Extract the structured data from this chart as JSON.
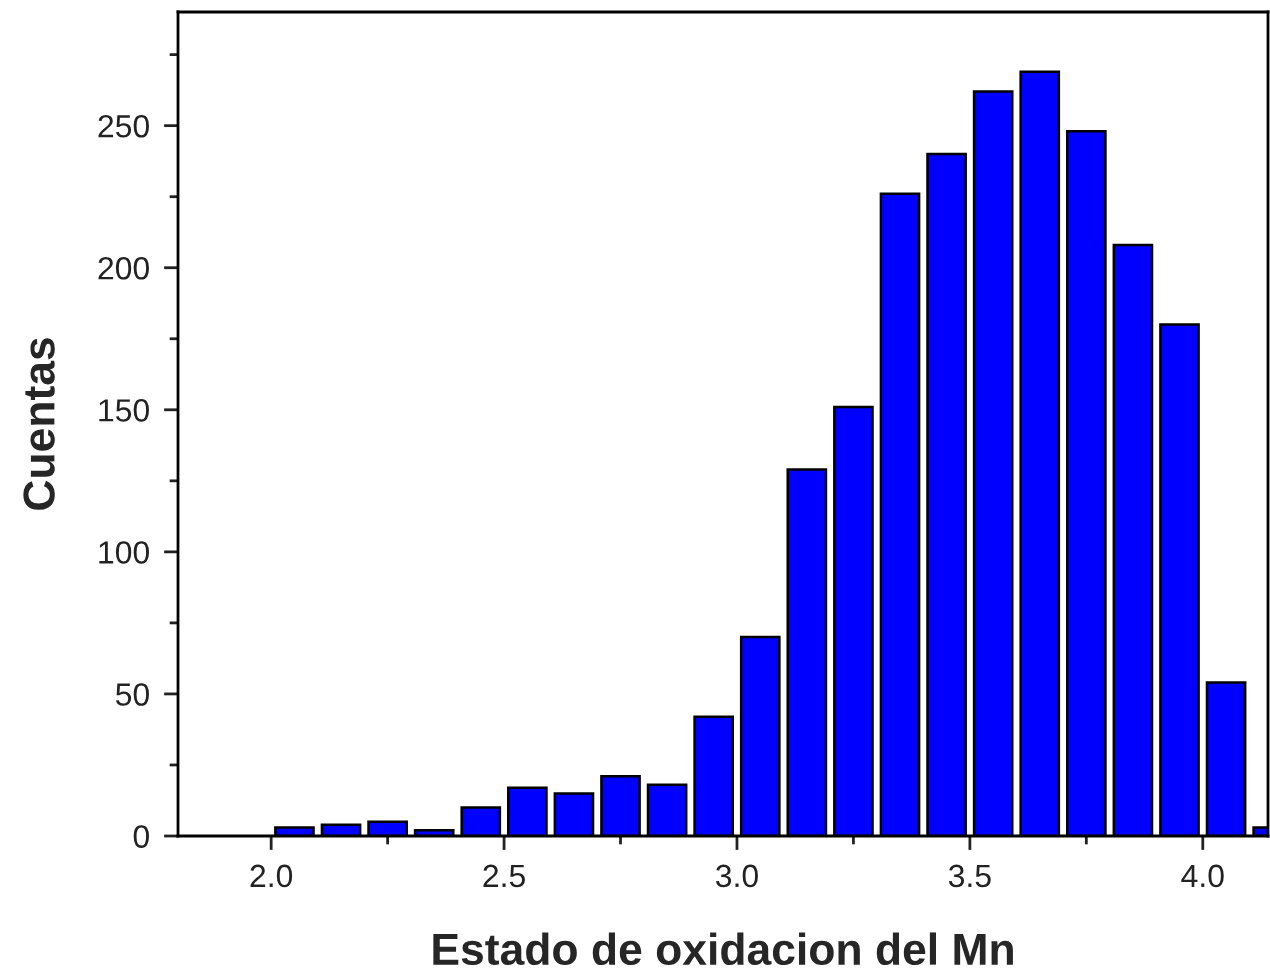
{
  "chart_data": {
    "type": "histogram",
    "xlabel": "Estado de oxidacion del Mn",
    "ylabel": "Cuentas",
    "color": "#0000ff",
    "bins": [
      2.0,
      2.1,
      2.2,
      2.3,
      2.4,
      2.5,
      2.6,
      2.7,
      2.8,
      2.9,
      3.0,
      3.1,
      3.2,
      3.3,
      3.4,
      3.5,
      3.6,
      3.7,
      3.8,
      3.9,
      4.0,
      4.1,
      4.2
    ],
    "values": [
      3,
      4,
      5,
      2,
      10,
      17,
      15,
      21,
      18,
      42,
      70,
      129,
      151,
      226,
      240,
      262,
      269,
      248,
      208,
      180,
      54,
      3
    ],
    "xlim": [
      1.8,
      4.14
    ],
    "ylim": [
      0,
      290
    ],
    "xticks": [
      {
        "value": 2.0,
        "label": "2.0"
      },
      {
        "value": 2.25,
        "label": null
      },
      {
        "value": 2.5,
        "label": "2.5"
      },
      {
        "value": 2.75,
        "label": null
      },
      {
        "value": 3.0,
        "label": "3.0"
      },
      {
        "value": 3.25,
        "label": null
      },
      {
        "value": 3.5,
        "label": "3.5"
      },
      {
        "value": 3.75,
        "label": null
      },
      {
        "value": 4.0,
        "label": "4.0"
      }
    ],
    "yticks": [
      0,
      {
        "value": 25,
        "label": null
      },
      50,
      {
        "value": 75,
        "label": null
      },
      100,
      {
        "value": 125,
        "label": null
      },
      150,
      {
        "value": 175,
        "label": null
      },
      200,
      {
        "value": 225,
        "label": null
      },
      250,
      {
        "value": 275,
        "label": null
      }
    ]
  }
}
